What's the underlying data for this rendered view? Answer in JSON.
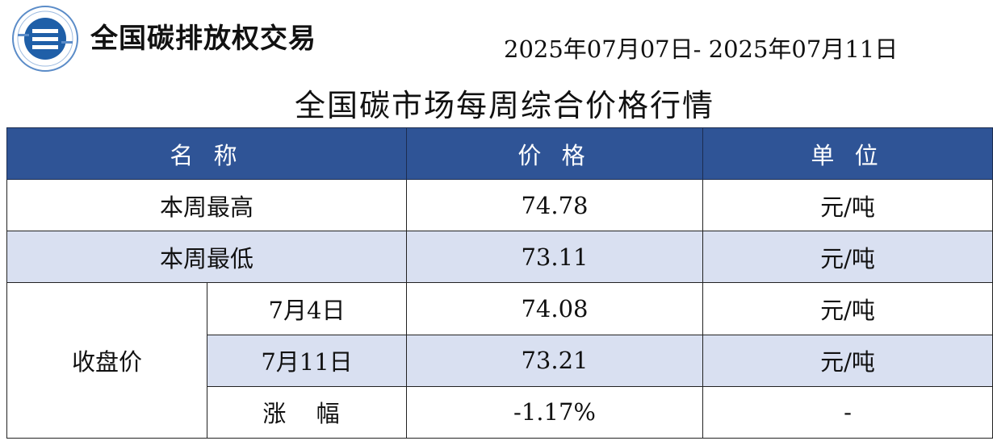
{
  "brand": {
    "name": "全国碳排放权交易"
  },
  "header": {
    "date_range": "2025年07月07日- 2025年07月11日"
  },
  "title": "全国碳市场每周综合价格行情",
  "table": {
    "headers": {
      "name": "名 称",
      "price": "价 格",
      "unit": "单 位"
    },
    "week_high": {
      "label": "本周最高",
      "price": "74.78",
      "unit": "元/吨"
    },
    "week_low": {
      "label": "本周最低",
      "price": "73.11",
      "unit": "元/吨"
    },
    "close": {
      "label": "收盘价",
      "rows": [
        {
          "date": "7月4日",
          "price": "74.08",
          "unit": "元/吨"
        },
        {
          "date": "7月11日",
          "price": "73.21",
          "unit": "元/吨"
        }
      ],
      "change": {
        "label": "涨 幅",
        "price": "-1.17%",
        "unit": "-"
      }
    }
  },
  "colors": {
    "header_bg": "#2f5496",
    "stripe_bg": "#d9e0f1",
    "logo_blue": "#1f5fa8"
  }
}
